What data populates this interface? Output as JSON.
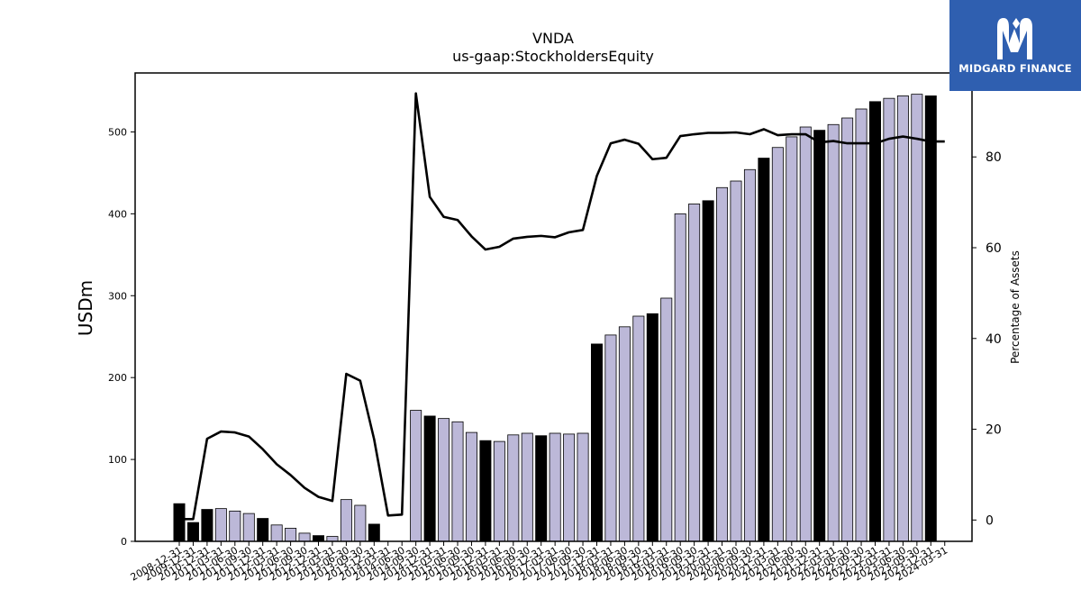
{
  "brand": {
    "name": "MIDGARD FINANCE",
    "logo_icon": "midgard-m-logo-icon",
    "background": "#2f5fb0"
  },
  "chart_data": {
    "type": "bar",
    "title": "VNDA",
    "subtitle": "us-gaap:StockholdersEquity",
    "ylabel": "USDm",
    "y2label": "Percentage of Assets",
    "ylim": [
      0,
      572
    ],
    "y2lim": [
      -4.7,
      98.5
    ],
    "yticks": [
      0,
      100,
      200,
      300,
      400,
      500
    ],
    "y2ticks": [
      0,
      20,
      40,
      60,
      80
    ],
    "grid": false,
    "bar_colors": {
      "annual": "#000000",
      "quarter": "#bcb8d8"
    },
    "line_color": "#000000",
    "categories": [
      "2008-12-31",
      "2009-12-31",
      "2010-12-31",
      "2011-03-31",
      "2011-06-30",
      "2011-09-30",
      "2011-12-31",
      "2012-03-31",
      "2012-06-30",
      "2012-09-30",
      "2012-12-31",
      "2013-03-31",
      "2013-06-30",
      "2013-09-30",
      "2013-12-31",
      "2014-03-31",
      "2014-06-30",
      "2014-09-30",
      "2014-12-31",
      "2015-03-31",
      "2015-06-30",
      "2015-09-30",
      "2015-12-31",
      "2016-03-31",
      "2016-06-30",
      "2016-09-30",
      "2016-12-31",
      "2017-03-31",
      "2017-06-30",
      "2017-09-30",
      "2017-12-31",
      "2018-03-31",
      "2018-06-30",
      "2018-09-30",
      "2018-12-31",
      "2019-03-31",
      "2019-06-30",
      "2019-09-30",
      "2019-12-31",
      "2020-03-31",
      "2020-06-30",
      "2020-09-30",
      "2020-12-31",
      "2021-03-31",
      "2021-06-30",
      "2021-09-30",
      "2021-12-31",
      "2022-03-31",
      "2022-06-30",
      "2022-09-30",
      "2022-12-31",
      "2023-03-31",
      "2023-06-30",
      "2023-09-30",
      "2023-12-31",
      "2024-03-31"
    ],
    "series": [
      {
        "kind": "bar",
        "axis": "left",
        "values": [
          46,
          23,
          39,
          40,
          37,
          34,
          28,
          20,
          16,
          10,
          7,
          6,
          51,
          44,
          21,
          0,
          0,
          160,
          153,
          150,
          146,
          133,
          123,
          122,
          130,
          132,
          129,
          132,
          131,
          132,
          241,
          252,
          262,
          275,
          278,
          297,
          400,
          412,
          416,
          432,
          440,
          454,
          468,
          481,
          494,
          506,
          502,
          509,
          517,
          528,
          537,
          541,
          544,
          546,
          544,
          0
        ],
        "is_annual": [
          1,
          1,
          1,
          0,
          0,
          0,
          1,
          0,
          0,
          0,
          1,
          0,
          0,
          0,
          1,
          0,
          0,
          0,
          1,
          0,
          0,
          0,
          1,
          0,
          0,
          0,
          1,
          0,
          0,
          0,
          1,
          0,
          0,
          0,
          1,
          0,
          0,
          0,
          1,
          0,
          0,
          0,
          1,
          0,
          0,
          0,
          1,
          0,
          0,
          0,
          1,
          0,
          0,
          0,
          1,
          0
        ]
      },
      {
        "kind": "line",
        "axis": "right",
        "values": [
          0.2,
          0.2,
          17.9,
          19.5,
          19.3,
          18.4,
          15.6,
          12.3,
          9.9,
          7.1,
          5.1,
          4.2,
          32.2,
          30.7,
          17.8,
          1.0,
          1.2,
          94.0,
          71.2,
          66.8,
          66.1,
          62.5,
          59.6,
          60.2,
          62.0,
          62.4,
          62.6,
          62.3,
          63.4,
          63.9,
          75.8,
          83.0,
          83.8,
          82.9,
          79.5,
          79.8,
          84.6,
          85.0,
          85.3,
          85.3,
          85.4,
          85.0,
          86.1,
          84.8,
          85.0,
          85.0,
          83.2,
          83.5,
          83.0,
          83.0,
          83.0,
          84.0,
          84.5,
          84.0,
          83.4,
          83.4
        ]
      }
    ]
  }
}
